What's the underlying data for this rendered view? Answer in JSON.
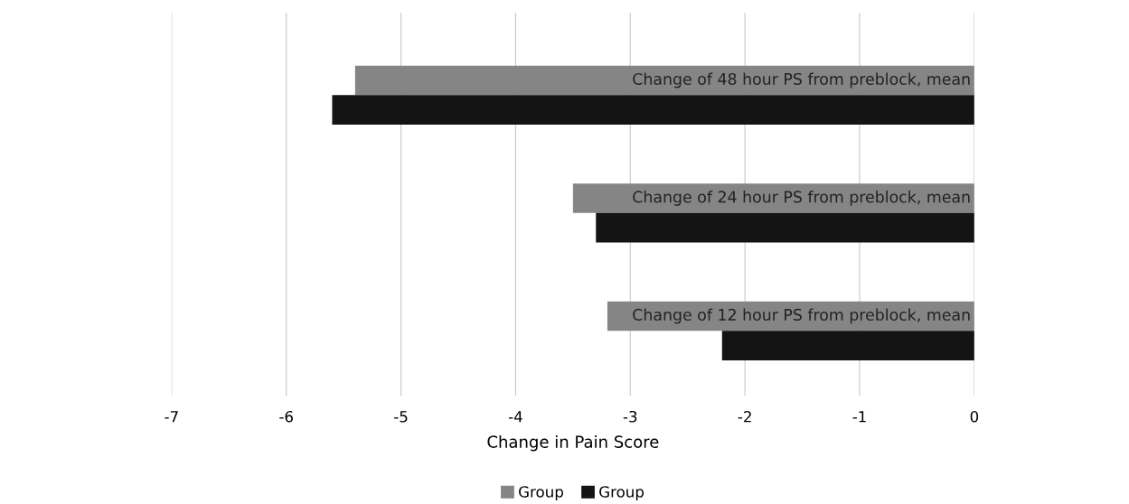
{
  "chart_data": {
    "type": "bar",
    "orientation": "horizontal",
    "xlabel": "Change in Pain Score",
    "categories": [
      "Change of 48 hour PS from preblock, mean",
      "Change of 24 hour PS from preblock, mean",
      "Change of 12 hour PS from preblock, mean"
    ],
    "series": [
      {
        "name": "Group",
        "color": "#858585",
        "values": [
          -5.4,
          -3.5,
          -3.2
        ]
      },
      {
        "name": "Group",
        "color": "#141414",
        "values": [
          -5.6,
          -3.3,
          -2.2
        ]
      }
    ],
    "xlim": [
      -7,
      0
    ],
    "xticks": [
      -7,
      -6,
      -5,
      -4,
      -3,
      -2,
      -1,
      0
    ],
    "grid": "x",
    "legend": "bottom"
  }
}
